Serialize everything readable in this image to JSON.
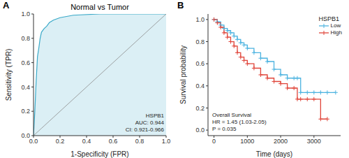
{
  "chart_data": [
    {
      "type": "line",
      "panel": "A",
      "title": "Normal vs Tumor",
      "xlabel": "1-Specificity (FPR)",
      "ylabel": "Sensitivity (TPR)",
      "annotations": [
        "HSPB1",
        "AUC: 0.944",
        "CI: 0.921-0.966"
      ],
      "x": [
        0,
        0.01,
        0.02,
        0.03,
        0.04,
        0.05,
        0.06,
        0.08,
        0.1,
        0.12,
        0.15,
        0.2,
        0.3,
        0.5,
        0.7,
        1.0
      ],
      "series": [
        {
          "type": "area",
          "color": "#3aa9c8",
          "values": [
            0,
            0.2,
            0.45,
            0.65,
            0.72,
            0.8,
            0.85,
            0.88,
            0.9,
            0.93,
            0.95,
            0.97,
            0.99,
            1.0,
            1.0,
            1.0
          ]
        },
        {
          "type": "line",
          "color": "#8c8c8c",
          "line_style": "solid",
          "values": [
            0,
            0.01,
            0.02,
            0.03,
            0.04,
            0.05,
            0.06,
            0.08,
            0.1,
            0.12,
            0.15,
            0.2,
            0.3,
            0.5,
            0.7,
            1.0
          ]
        }
      ],
      "xlim": [
        0,
        1
      ],
      "ylim": [
        0,
        1
      ],
      "xticks": [
        {
          "value": 0,
          "label": "0.0"
        },
        {
          "value": 0.2,
          "label": "0.2"
        },
        {
          "value": 0.4,
          "label": "0.4"
        },
        {
          "value": 0.6,
          "label": "0.6"
        },
        {
          "value": 0.8,
          "label": "0.8"
        },
        {
          "value": 1,
          "label": "1.0"
        }
      ],
      "yticks": [
        {
          "value": 0,
          "label": "0.0"
        },
        {
          "value": 0.2,
          "label": "0.2"
        },
        {
          "value": 0.4,
          "label": "0.4"
        },
        {
          "value": 0.6,
          "label": "0.6"
        },
        {
          "value": 0.8,
          "label": "0.8"
        },
        {
          "value": 1,
          "label": "1.0"
        }
      ],
      "grid": false
    },
    {
      "type": "line",
      "panel": "B",
      "xlabel": "Time (days)",
      "ylabel": "Survival probability",
      "annotations": [
        "Overall Survival",
        "HR = 1.45 (1.03-2.05)",
        "P = 0.035"
      ],
      "legend": "upper right",
      "legend_title": "HSPB1",
      "x": [
        0,
        100,
        200,
        300,
        400,
        500,
        600,
        700,
        800,
        900,
        1000,
        1200,
        1400,
        1600,
        1800,
        2000,
        2200,
        2400,
        2500,
        2600,
        2800,
        3000,
        3200,
        3400,
        3650
      ],
      "series": [
        {
          "name": "Low",
          "color": "#4cb3e0",
          "line_style": "step",
          "marker": "plus",
          "values": [
            1,
            0.98,
            0.95,
            0.92,
            0.9,
            0.88,
            0.85,
            0.82,
            0.79,
            0.77,
            0.74,
            0.7,
            0.65,
            0.62,
            0.55,
            0.5,
            0.47,
            0.47,
            0.47,
            0.34,
            0.34,
            0.34,
            0.34,
            0.34,
            0.34
          ]
        },
        {
          "name": "High",
          "color": "#e0453a",
          "line_style": "step",
          "marker": "plus",
          "values": [
            1,
            0.97,
            0.93,
            0.88,
            0.84,
            0.8,
            0.76,
            0.7,
            0.66,
            0.63,
            0.6,
            0.56,
            0.5,
            0.47,
            0.44,
            0.42,
            0.38,
            0.38,
            0.28,
            0.28,
            0.28,
            0.28,
            0.1,
            0.1,
            null
          ]
        }
      ],
      "xlim": [
        -180,
        3800
      ],
      "ylim": [
        -0.05,
        1.05
      ],
      "xticks": [
        0,
        1000,
        2000,
        3000
      ],
      "yticks": [
        {
          "value": 0,
          "label": "0.0"
        },
        {
          "value": 0.2,
          "label": "0.2"
        },
        {
          "value": 0.4,
          "label": "0.4"
        },
        {
          "value": 0.6,
          "label": "0.6"
        },
        {
          "value": 0.8,
          "label": "0.8"
        },
        {
          "value": 1,
          "label": "1.0"
        }
      ],
      "grid": false
    }
  ]
}
